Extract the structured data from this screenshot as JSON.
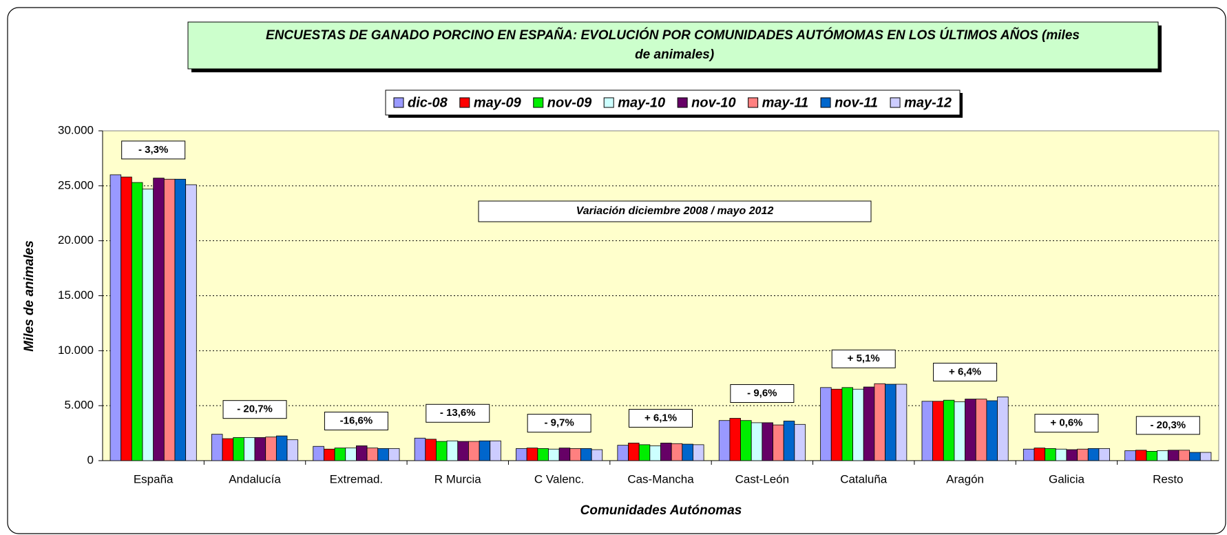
{
  "chart_data": {
    "type": "bar",
    "title": "ENCUESTAS DE GANADO PORCINO EN ESPAÑA: EVOLUCIÓN POR COMUNIDADES AUTÓMOMAS EN LOS ÚLTIMOS AÑOS (miles de animales)",
    "subtitle": "Variación diciembre 2008 / mayo 2012",
    "x_label": "Comunidades Autónomas",
    "y_label": "Miles de animales",
    "categories": [
      "España",
      "Andalucía",
      "Extremad.",
      "R Murcia",
      "C Valenc.",
      "Cas-Mancha",
      "Cast-León",
      "Cataluña",
      "Aragón",
      "Galicia",
      "Resto"
    ],
    "annotations": [
      "- 3,3%",
      "- 20,7%",
      "-16,6%",
      "- 13,6%",
      "- 9,7%",
      "+ 6,1%",
      "- 9,6%",
      "+ 5,1%",
      "+ 6,4%",
      "+ 0,6%",
      "- 20,3%"
    ],
    "series": [
      {
        "name": "dic-08",
        "color": "#9999ff",
        "values": [
          26000,
          2400,
          1300,
          2050,
          1100,
          1400,
          3650,
          6650,
          5400,
          1050,
          900
        ]
      },
      {
        "name": "may-09",
        "color": "#ff0000",
        "values": [
          25800,
          2000,
          1050,
          1950,
          1150,
          1600,
          3850,
          6500,
          5400,
          1150,
          950
        ]
      },
      {
        "name": "nov-09",
        "color": "#00ee00",
        "values": [
          25300,
          2100,
          1150,
          1750,
          1100,
          1450,
          3650,
          6650,
          5500,
          1100,
          850
        ]
      },
      {
        "name": "may-10",
        "color": "#ccffff",
        "values": [
          24700,
          2100,
          1150,
          1800,
          1050,
          1350,
          3450,
          6500,
          5350,
          1050,
          900
        ]
      },
      {
        "name": "nov-10",
        "color": "#660066",
        "values": [
          25700,
          2100,
          1350,
          1750,
          1150,
          1600,
          3450,
          6700,
          5600,
          1000,
          950
        ]
      },
      {
        "name": "may-11",
        "color": "#ff8080",
        "values": [
          25600,
          2150,
          1150,
          1750,
          1100,
          1550,
          3250,
          7000,
          5600,
          1050,
          950
        ]
      },
      {
        "name": "nov-11",
        "color": "#0066cc",
        "values": [
          25600,
          2250,
          1100,
          1800,
          1100,
          1500,
          3600,
          6950,
          5450,
          1100,
          750
        ]
      },
      {
        "name": "may-12",
        "color": "#ccccff",
        "values": [
          25100,
          1900,
          1100,
          1800,
          1000,
          1450,
          3300,
          6950,
          5800,
          1100,
          750
        ]
      }
    ],
    "ylim": [
      0,
      30000
    ],
    "yticks": [
      0,
      {
        "value": 5000,
        "label": "5.000"
      },
      {
        "value": 10000,
        "label": "10.000"
      },
      {
        "value": 15000,
        "label": "15.000"
      },
      {
        "value": 20000,
        "label": "20.000"
      },
      {
        "value": 25000,
        "label": "25.000"
      },
      {
        "value": 30000,
        "label": "30.000"
      }
    ],
    "grid": true
  }
}
